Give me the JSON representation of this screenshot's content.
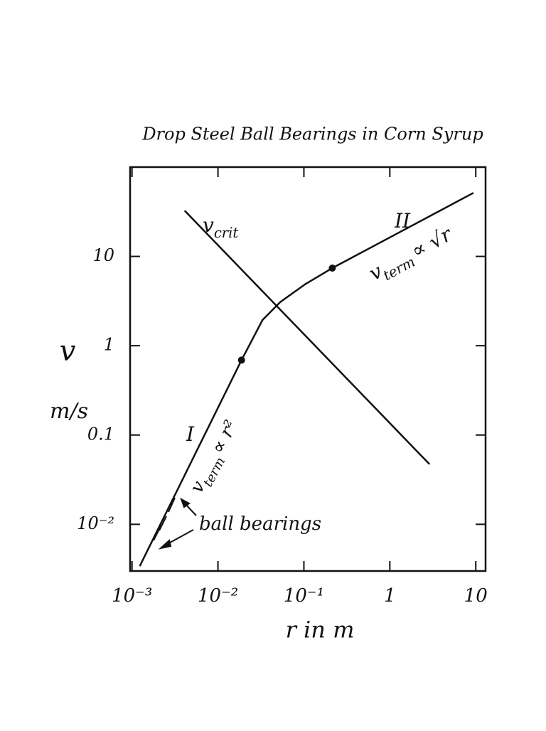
{
  "chart_data": {
    "type": "line",
    "title": "Drop Steel Ball Bearings in Corn Syrup",
    "x_label": "r in m",
    "y_label": "v",
    "y_unit": "m/s",
    "log_x": true,
    "log_y": true,
    "xlim": [
      0.00095,
      13
    ],
    "ylim": [
      0.003,
      100
    ],
    "xticks": [
      {
        "value": 0.001,
        "label": "10⁻³"
      },
      {
        "value": 0.01,
        "label": "10⁻²"
      },
      {
        "value": 0.1,
        "label": "10⁻¹"
      },
      1,
      10
    ],
    "yticks": [
      {
        "value": 0.01,
        "label": "10⁻²"
      },
      0.1,
      1,
      10
    ],
    "color": "#111111",
    "series": [
      {
        "x": [
          0.0041,
          2.9
        ],
        "values": [
          32.5,
          0.047
        ]
      },
      {
        "x": [
          0.00123,
          0.0188,
          0.033,
          0.053,
          0.104,
          0.214,
          9.4
        ],
        "values": [
          0.0034,
          0.69,
          1.94,
          3.08,
          4.9,
          7.4,
          51.5
        ]
      }
    ],
    "points": {
      "x": [
        0.0188,
        0.214
      ],
      "values": [
        0.69,
        7.4
      ]
    },
    "annotations": [
      {
        "text": "v",
        "sub": "crit"
      },
      {
        "text": "II"
      },
      {
        "text": "v",
        "sub": "term",
        "tail": "∝ √r"
      },
      {
        "text": "I"
      },
      {
        "text": "v",
        "sub": "term",
        "tail": "∝ r²"
      },
      {
        "text": "ball bearings"
      }
    ]
  }
}
